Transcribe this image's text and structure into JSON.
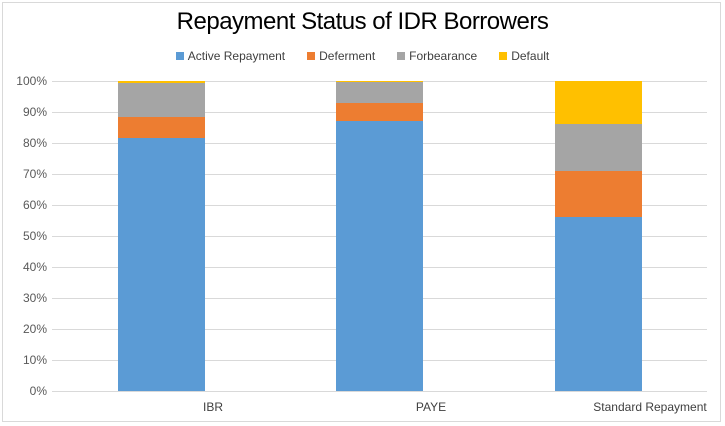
{
  "chart_data": {
    "type": "bar",
    "stacked": true,
    "percent": true,
    "title": "Repayment Status of IDR Borrowers",
    "xlabel": "",
    "ylabel": "",
    "ylim": [
      0,
      100
    ],
    "yticks": [
      "0%",
      "10%",
      "20%",
      "30%",
      "40%",
      "50%",
      "60%",
      "70%",
      "80%",
      "90%",
      "100%"
    ],
    "categories": [
      "IBR",
      "PAYE",
      "Standard Repayment"
    ],
    "series": [
      {
        "name": "Active Repayment",
        "color": "#5b9bd5",
        "values": [
          81.5,
          87.0,
          56.0
        ]
      },
      {
        "name": "Deferment",
        "color": "#ed7d31",
        "values": [
          7.0,
          6.0,
          15.0
        ]
      },
      {
        "name": "Forbearance",
        "color": "#a5a5a5",
        "values": [
          11.0,
          6.7,
          15.0
        ]
      },
      {
        "name": "Default",
        "color": "#ffc000",
        "values": [
          0.5,
          0.3,
          14.0
        ]
      }
    ],
    "legend_position": "top",
    "grid": true
  },
  "title": "Repayment Status of IDR Borrowers",
  "legend": [
    {
      "label": "Active Repayment",
      "color": "#5b9bd5"
    },
    {
      "label": "Deferment",
      "color": "#ed7d31"
    },
    {
      "label": "Forbearance",
      "color": "#a5a5a5"
    },
    {
      "label": "Default",
      "color": "#ffc000"
    }
  ],
  "yticks": [
    "0%",
    "10%",
    "20%",
    "30%",
    "40%",
    "50%",
    "60%",
    "70%",
    "80%",
    "90%",
    "100%"
  ],
  "categories": [
    "IBR",
    "PAYE",
    "Standard Repayment"
  ]
}
